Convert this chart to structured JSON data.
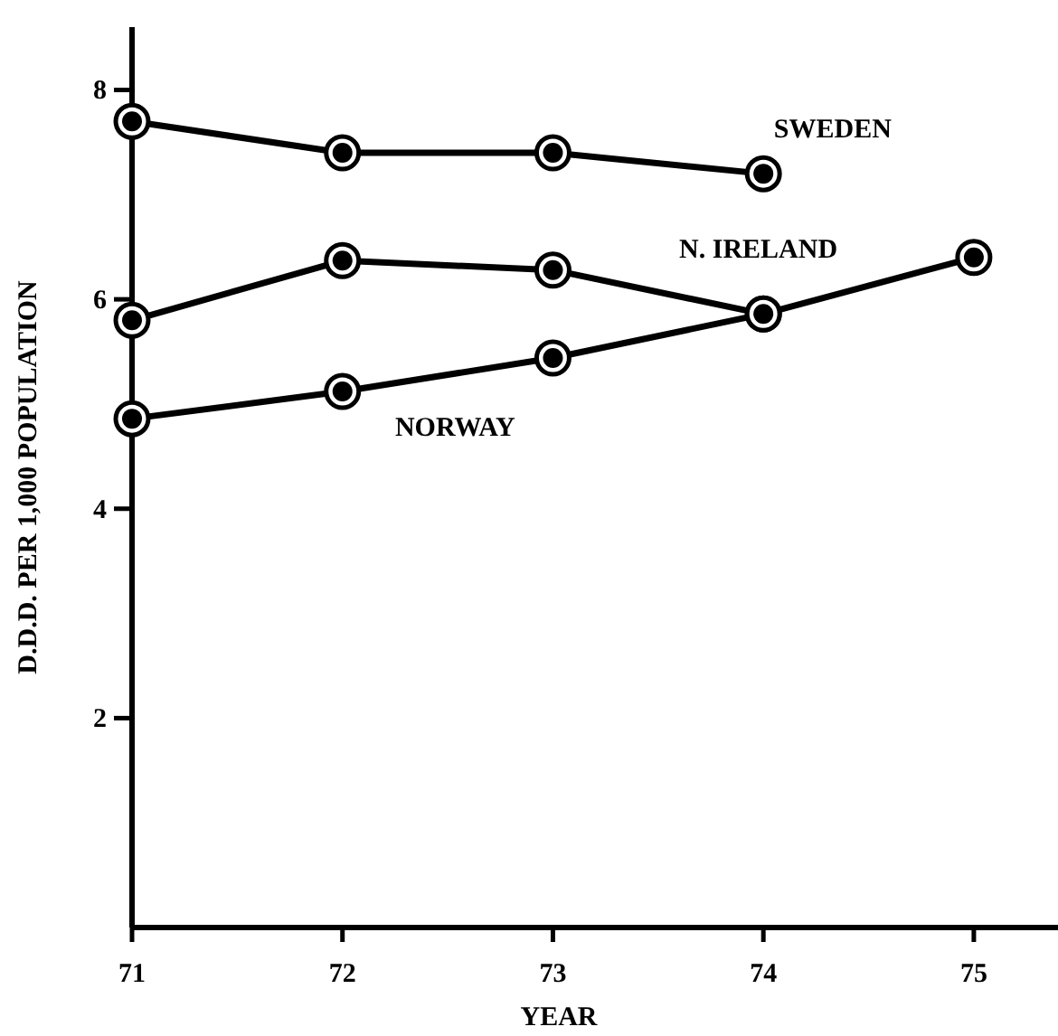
{
  "chart_data": {
    "type": "line",
    "xlabel": "YEAR",
    "ylabel": "D.D.D. PER 1,000 POPULATION",
    "x": [
      71,
      72,
      73,
      74,
      75
    ],
    "xlim": [
      71,
      75.4
    ],
    "xticks": [
      71,
      72,
      73,
      74,
      75
    ],
    "ylim": [
      0,
      8.6
    ],
    "yticks": [
      2,
      4,
      6,
      8
    ],
    "grid": false,
    "legend": false,
    "marker": "circle",
    "series": [
      {
        "name": "SWEDEN",
        "color": "#000000",
        "values": [
          7.7,
          7.4,
          7.4,
          7.2,
          null
        ]
      },
      {
        "name": "N. IRELAND",
        "color": "#000000",
        "values": [
          5.8,
          6.37,
          6.28,
          5.86,
          null
        ]
      },
      {
        "name": "NORWAY",
        "color": "#000000",
        "values": [
          4.86,
          5.12,
          5.44,
          5.86,
          6.4
        ]
      }
    ]
  }
}
